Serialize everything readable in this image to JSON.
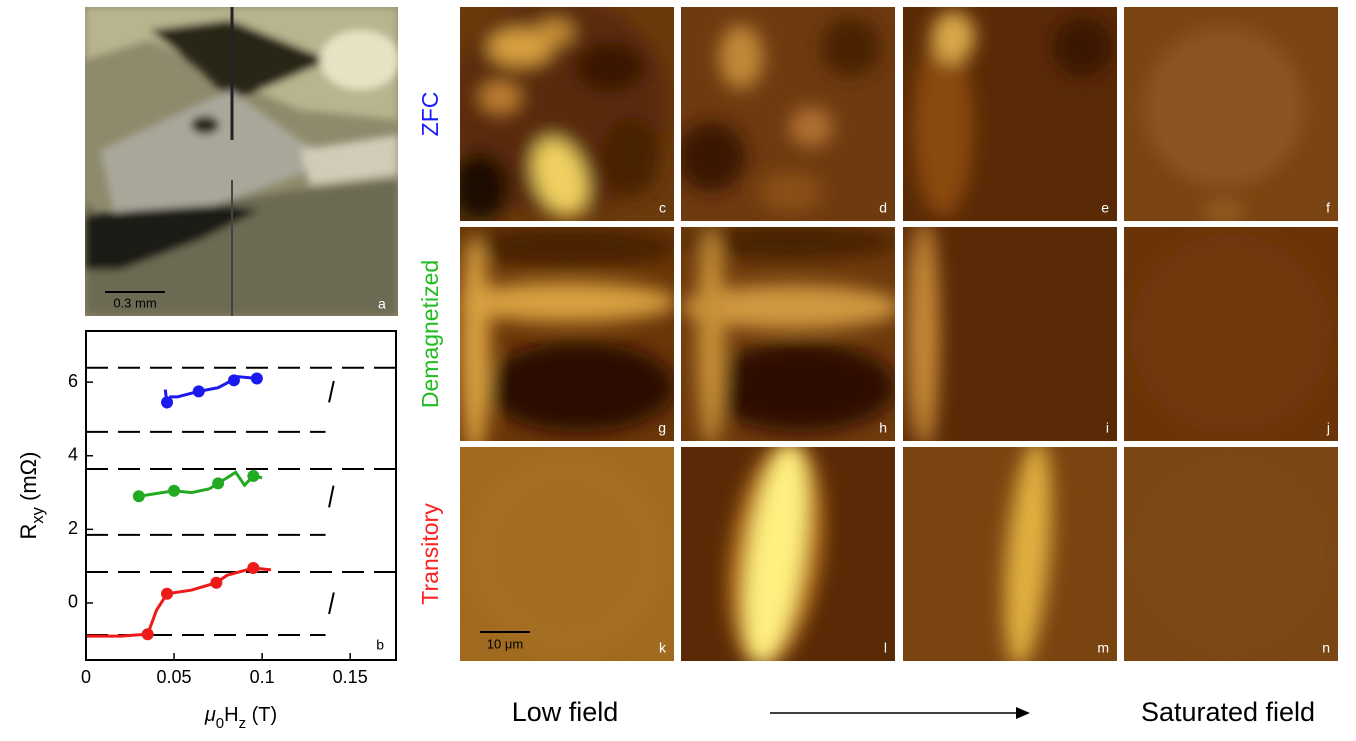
{
  "photo": {
    "panel_label": "a",
    "scale_bar": "0.3 mm"
  },
  "rows": [
    {
      "label": "ZFC",
      "color": "#1a1aff",
      "panels": [
        "c",
        "d",
        "e",
        "f"
      ]
    },
    {
      "label": "Demagnetized",
      "color": "#22bb22",
      "panels": [
        "g",
        "h",
        "i",
        "j"
      ]
    },
    {
      "label": "Transitory",
      "color": "#ff2020",
      "panels": [
        "k",
        "l",
        "m",
        "n"
      ]
    }
  ],
  "image_scale_bar": "10 μm",
  "footer": {
    "left": "Low field",
    "right": "Saturated field"
  },
  "chart_data": {
    "type": "line",
    "panel_label": "b",
    "xlabel": [
      {
        "text": "μ",
        "italic": true
      },
      {
        "text": "0",
        "sub": true
      },
      {
        "text": "H"
      },
      {
        "text": "z",
        "sub": true
      },
      {
        "text": " (T)"
      }
    ],
    "ylabel": [
      {
        "text": "R"
      },
      {
        "text": "xy",
        "sub": true
      },
      {
        "text": " (mΩ)"
      }
    ],
    "xlim": [
      0,
      0.176
    ],
    "ylim": [
      -1.55,
      7.39
    ],
    "xticks": [
      0,
      0.05,
      0.1,
      0.15
    ],
    "yticks": [
      0,
      2,
      4,
      6
    ],
    "series": [
      {
        "color": "#000000",
        "style": "dashed",
        "x": [
          0,
          0.176,
          null,
          0,
          0.136,
          null,
          0.138,
          0.141
        ],
        "values": [
          6.39,
          6.39,
          null,
          4.65,
          4.65,
          null,
          5.45,
          6.1
        ]
      },
      {
        "color": "#000000",
        "style": "dashed",
        "x": [
          0,
          0.176,
          null,
          0,
          0.136,
          null,
          0.138,
          0.141
        ],
        "values": [
          3.64,
          3.64,
          null,
          1.85,
          1.85,
          null,
          2.6,
          3.3
        ]
      },
      {
        "color": "#000000",
        "style": "dashed",
        "x": [
          0,
          0.176,
          null,
          0,
          0.136,
          null,
          0.138,
          0.141
        ],
        "values": [
          0.84,
          0.84,
          null,
          -0.87,
          -0.87,
          null,
          -0.3,
          0.35
        ]
      },
      {
        "color": "#1a1aee",
        "x": [
          0.045,
          0.046,
          0.048,
          0.052,
          0.064,
          0.075,
          0.083,
          0.086,
          0.097
        ],
        "values": [
          5.8,
          5.4,
          5.6,
          5.6,
          5.75,
          5.85,
          6.05,
          6.15,
          6.1
        ],
        "marker_x": [
          0.046,
          0.064,
          0.084,
          0.097
        ],
        "marker_values": [
          5.45,
          5.75,
          6.05,
          6.1
        ]
      },
      {
        "color": "#22aa22",
        "x": [
          0.03,
          0.05,
          0.06,
          0.07,
          0.075,
          0.085,
          0.09,
          0.095,
          0.1
        ],
        "values": [
          2.9,
          3.05,
          3.0,
          3.1,
          3.25,
          3.55,
          3.2,
          3.45,
          3.4
        ],
        "marker_x": [
          0.03,
          0.05,
          0.075,
          0.095
        ],
        "marker_values": [
          2.9,
          3.05,
          3.25,
          3.45
        ]
      },
      {
        "color": "#ee1a1a",
        "x": [
          0,
          0.02,
          0.035,
          0.04,
          0.046,
          0.06,
          0.074,
          0.08,
          0.095,
          0.105
        ],
        "values": [
          -0.9,
          -0.9,
          -0.85,
          -0.2,
          0.25,
          0.35,
          0.55,
          0.75,
          0.95,
          0.9
        ],
        "marker_x": [
          0.035,
          0.046,
          0.074,
          0.095
        ],
        "marker_values": [
          -0.85,
          0.25,
          0.55,
          0.95
        ]
      }
    ]
  }
}
